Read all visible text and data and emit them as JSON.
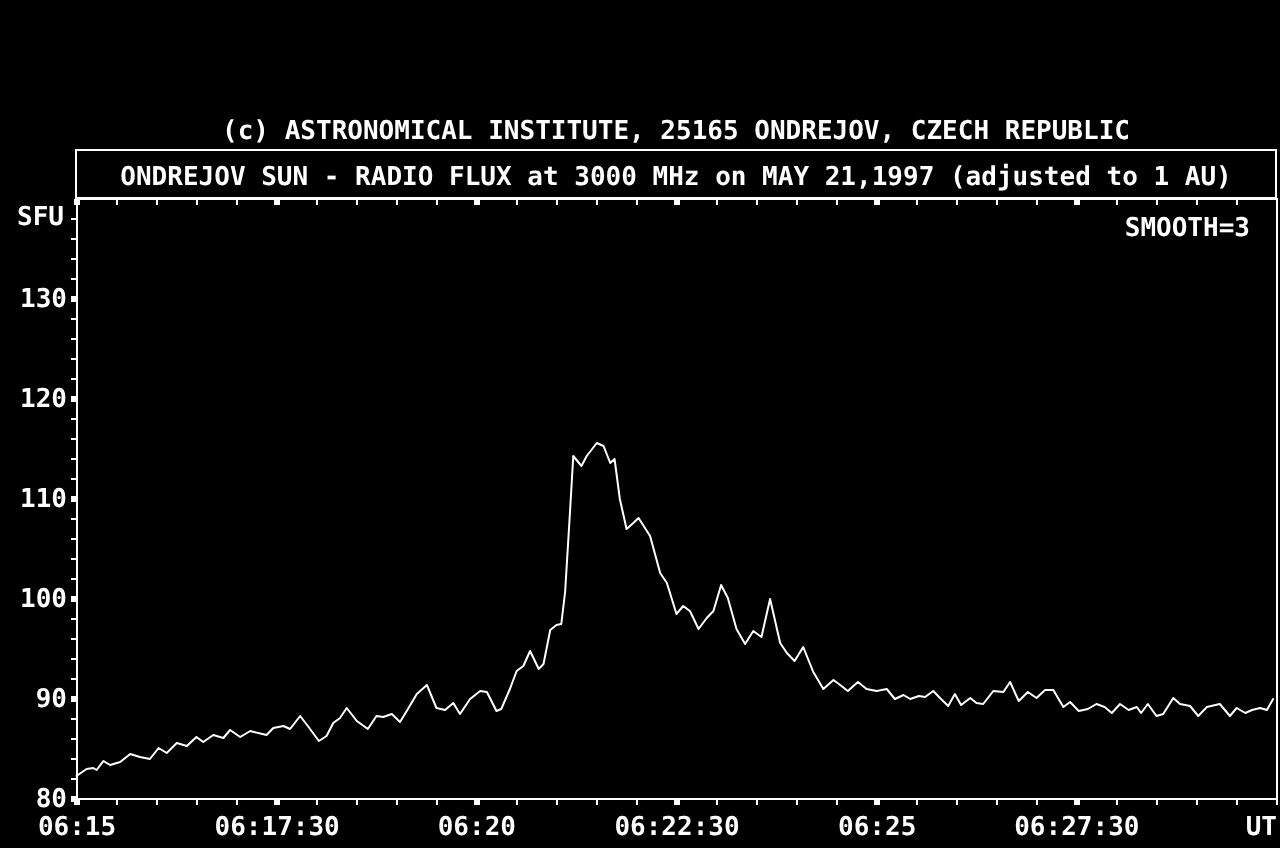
{
  "chart_data": {
    "type": "line",
    "title": "(c) ASTRONOMICAL INSTITUTE, 25165 ONDREJOV, CZECH REPUBLIC",
    "subtitle": "ONDREJOV SUN - RADIO FLUX at 3000 MHz on MAY 21,1997 (adjusted to 1 AU)",
    "xlabel": "UT",
    "ylabel": "SFU",
    "annotations": [
      "SMOOTH=3"
    ],
    "xlim": [
      6.25,
      6.5
    ],
    "xticks": [
      {
        "value": 6.25,
        "label": "06:15"
      },
      {
        "value": 6.2583,
        "label": null
      },
      {
        "value": 6.2667,
        "label": null
      },
      {
        "value": 6.275,
        "label": null
      },
      {
        "value": 6.2833,
        "label": null
      },
      {
        "value": 6.2917,
        "label": "06:17:30"
      },
      {
        "value": 6.3,
        "label": null
      },
      {
        "value": 6.3083,
        "label": null
      },
      {
        "value": 6.3167,
        "label": null
      },
      {
        "value": 6.325,
        "label": null
      },
      {
        "value": 6.3333,
        "label": "06:20"
      },
      {
        "value": 6.3417,
        "label": null
      },
      {
        "value": 6.35,
        "label": null
      },
      {
        "value": 6.3583,
        "label": null
      },
      {
        "value": 6.3667,
        "label": null
      },
      {
        "value": 6.375,
        "label": "06:22:30"
      },
      {
        "value": 6.3833,
        "label": null
      },
      {
        "value": 6.3917,
        "label": null
      },
      {
        "value": 6.4,
        "label": null
      },
      {
        "value": 6.4083,
        "label": null
      },
      {
        "value": 6.4167,
        "label": "06:25"
      },
      {
        "value": 6.425,
        "label": null
      },
      {
        "value": 6.4333,
        "label": null
      },
      {
        "value": 6.4417,
        "label": null
      },
      {
        "value": 6.45,
        "label": null
      },
      {
        "value": 6.4583,
        "label": "06:27:30"
      },
      {
        "value": 6.4667,
        "label": null
      },
      {
        "value": 6.475,
        "label": null
      },
      {
        "value": 6.4833,
        "label": null
      },
      {
        "value": 6.4917,
        "label": null
      },
      {
        "value": 6.5,
        "label": null
      }
    ],
    "ylim": [
      80,
      140
    ],
    "yticks": [
      80,
      {
        "value": 82,
        "label": null
      },
      {
        "value": 84,
        "label": null
      },
      {
        "value": 86,
        "label": null
      },
      {
        "value": 88,
        "label": null
      },
      90,
      {
        "value": 92,
        "label": null
      },
      {
        "value": 94,
        "label": null
      },
      {
        "value": 96,
        "label": null
      },
      {
        "value": 98,
        "label": null
      },
      100,
      {
        "value": 102,
        "label": null
      },
      {
        "value": 104,
        "label": null
      },
      {
        "value": 106,
        "label": null
      },
      {
        "value": 108,
        "label": null
      },
      110,
      {
        "value": 112,
        "label": null
      },
      {
        "value": 114,
        "label": null
      },
      {
        "value": 116,
        "label": null
      },
      {
        "value": 118,
        "label": null
      },
      120,
      {
        "value": 122,
        "label": null
      },
      {
        "value": 124,
        "label": null
      },
      {
        "value": 126,
        "label": null
      },
      {
        "value": 128,
        "label": null
      },
      130,
      {
        "value": 132,
        "label": null
      },
      {
        "value": 134,
        "label": null
      },
      {
        "value": 136,
        "label": null
      },
      {
        "value": 138,
        "label": null
      }
    ],
    "grid": false,
    "line_style": "solid",
    "x": [
      6.2501,
      6.2522,
      6.2536,
      6.2543,
      6.2557,
      6.2571,
      6.2592,
      6.2613,
      6.2633,
      6.2654,
      6.2672,
      6.2689,
      6.271,
      6.2731,
      6.2751,
      6.2765,
      6.2786,
      6.2807,
      6.2821,
      6.2842,
      6.2863,
      6.2897,
      6.2911,
      6.2932,
      6.2946,
      6.2967,
      6.2983,
      6.3006,
      6.3022,
      6.3036,
      6.305,
      6.3064,
      6.3085,
      6.3108,
      6.3126,
      6.314,
      6.3158,
      6.3175,
      6.3189,
      6.321,
      6.3231,
      6.3251,
      6.3269,
      6.3286,
      6.33,
      6.3321,
      6.3342,
      6.3356,
      6.3376,
      6.3386,
      6.3404,
      6.3418,
      6.3432,
      6.3446,
      6.3464,
      6.3474,
      6.3488,
      6.3501,
      6.3511,
      6.3519,
      6.3529,
      6.3536,
      6.3553,
      6.3564,
      6.3585,
      6.3599,
      6.3613,
      6.3622,
      6.3633,
      6.3647,
      6.3661,
      6.3672,
      6.3696,
      6.3717,
      6.3731,
      6.3751,
      6.3765,
      6.3779,
      6.3797,
      6.3814,
      6.3828,
      6.3844,
      6.3858,
      6.3876,
      6.3894,
      6.3911,
      6.3928,
      6.3946,
      6.3967,
      6.3981,
      6.3997,
      6.4015,
      6.4036,
      6.4057,
      6.4078,
      6.4092,
      6.4108,
      6.4129,
      6.4147,
      6.4168,
      6.4189,
      6.4206,
      6.4224,
      6.4238,
      6.4256,
      6.4269,
      6.4286,
      6.43,
      6.4317,
      6.4331,
      6.4344,
      6.4363,
      6.4376,
      6.439,
      6.4411,
      6.4432,
      6.4446,
      6.4464,
      6.4483,
      6.4501,
      6.4519,
      6.4536,
      6.4557,
      6.4571,
      6.4589,
      6.4608,
      6.4626,
      6.4643,
      6.4658,
      6.4675,
      6.4693,
      6.471,
      6.4719,
      6.4733,
      6.4751,
      6.4765,
      6.4786,
      6.48,
      6.4821,
      6.4838,
      6.4856,
      6.4883,
      6.4904,
      6.4918,
      6.4936,
      6.495,
      6.4967,
      6.4981,
      6.4994
    ],
    "series": [
      {
        "color": "#ffffff",
        "values": [
          82.2,
          82.9,
          83.0,
          82.8,
          83.7,
          83.3,
          83.6,
          84.4,
          84.1,
          83.9,
          85.0,
          84.5,
          85.5,
          85.2,
          86.1,
          85.6,
          86.3,
          86.0,
          86.8,
          86.1,
          86.7,
          86.3,
          87.0,
          87.2,
          86.9,
          88.2,
          87.2,
          85.7,
          86.2,
          87.5,
          88.0,
          89.0,
          87.7,
          86.9,
          88.2,
          88.1,
          88.4,
          87.6,
          88.7,
          90.4,
          91.3,
          89.0,
          88.8,
          89.5,
          88.4,
          89.9,
          90.7,
          90.6,
          88.7,
          88.9,
          90.9,
          92.7,
          93.2,
          94.7,
          92.9,
          93.4,
          96.8,
          97.3,
          97.4,
          100.6,
          108.5,
          114.2,
          113.2,
          114.2,
          115.5,
          115.2,
          113.5,
          113.9,
          109.9,
          106.9,
          107.5,
          108.0,
          106.2,
          102.5,
          101.5,
          98.4,
          99.2,
          98.7,
          96.9,
          98.0,
          98.7,
          101.3,
          100.0,
          96.9,
          95.4,
          96.7,
          96.1,
          99.9,
          95.5,
          94.5,
          93.7,
          95.1,
          92.6,
          90.9,
          91.8,
          91.3,
          90.7,
          91.6,
          90.9,
          90.7,
          90.9,
          89.9,
          90.3,
          89.9,
          90.2,
          90.1,
          90.7,
          90.0,
          89.2,
          90.4,
          89.3,
          90.0,
          89.5,
          89.4,
          90.7,
          90.6,
          91.6,
          89.7,
          90.6,
          90.0,
          90.8,
          90.8,
          89.1,
          89.6,
          88.7,
          88.9,
          89.4,
          89.1,
          88.5,
          89.4,
          88.8,
          89.1,
          88.5,
          89.4,
          88.2,
          88.4,
          90.0,
          89.4,
          89.2,
          88.2,
          89.1,
          89.4,
          88.2,
          89.0,
          88.5,
          88.8,
          89.0,
          88.8,
          89.9
        ]
      }
    ]
  }
}
